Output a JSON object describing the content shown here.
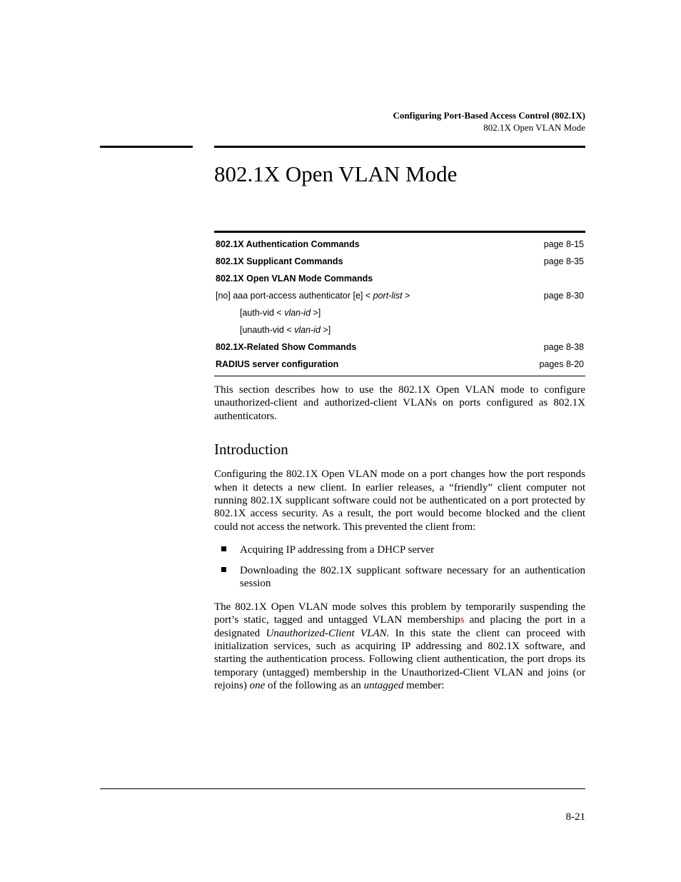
{
  "header": {
    "title": "Configuring Port-Based Access Control (802.1X)",
    "subtitle": "802.1X Open VLAN Mode"
  },
  "title": "802.1X Open VLAN Mode",
  "table": {
    "rows": [
      {
        "label": "802.1X Authentication Commands",
        "bold": true,
        "indent": false,
        "page": "page 8-15"
      },
      {
        "label": "802.1X Supplicant Commands",
        "bold": true,
        "indent": false,
        "page": "page 8-35"
      },
      {
        "label": "802.1X Open VLAN Mode Commands",
        "bold": true,
        "indent": false,
        "page": ""
      },
      {
        "label_prefix": "[no] aaa port-access authenticator [e] < ",
        "label_ital": "port-list",
        "label_suffix": " >",
        "bold": false,
        "indent": false,
        "page": "page 8-30"
      },
      {
        "label_prefix": "[auth-vid < ",
        "label_ital": "vlan-id",
        "label_suffix": " >]",
        "bold": false,
        "indent": true,
        "page": ""
      },
      {
        "label_prefix": "[unauth-vid < ",
        "label_ital": "vlan-id",
        "label_suffix": " >]",
        "bold": false,
        "indent": true,
        "page": ""
      },
      {
        "label": "802.1X-Related Show Commands",
        "bold": true,
        "indent": false,
        "page": "page 8-38"
      },
      {
        "label": "RADIUS server configuration",
        "bold": true,
        "indent": false,
        "page": "pages 8-20"
      }
    ]
  },
  "body": {
    "para1": "This section describes how to use the 802.1X Open VLAN mode to configure unauthorized-client and authorized-client VLANs on ports configured as 802.1X authenticators.",
    "h2": "Introduction",
    "para2": "Configuring the 802.1X Open VLAN mode on a port changes how the port responds when it detects a new client. In earlier releases, a “friendly” client computer not running 802.1X supplicant software could not be authenticated on a port protected by 802.1X access security. As a result, the port would become blocked and the client could not access the network. This prevented the client from:",
    "bullets": [
      "Acquiring IP addressing from a DHCP server",
      "Downloading the 802.1X supplicant software necessary for an authentication session"
    ],
    "para3_a": "The 802.1X Open VLAN mode solves this problem by temporarily suspending the port’s static, tagged and untagged VLAN membership",
    "para3_red": "s",
    "para3_b": " and placing the port in a designated ",
    "para3_ital1": "Unauthorized-Client VLAN.",
    "para3_c": " In this state the client can proceed with initialization services, such as acquiring IP addressing and 802.1X software, and starting the authentication process. Following client authentication, the port drops its temporary (untagged) membership in the Unauthorized-Client VLAN and joins (or rejoins) ",
    "para3_ital2": "one",
    "para3_d": " of the following as an ",
    "para3_ital3": "untagged",
    "para3_e": " member:"
  },
  "page_number": "8-21",
  "colors": {
    "red": "#ee0000",
    "text": "#000000",
    "background": "#ffffff"
  }
}
